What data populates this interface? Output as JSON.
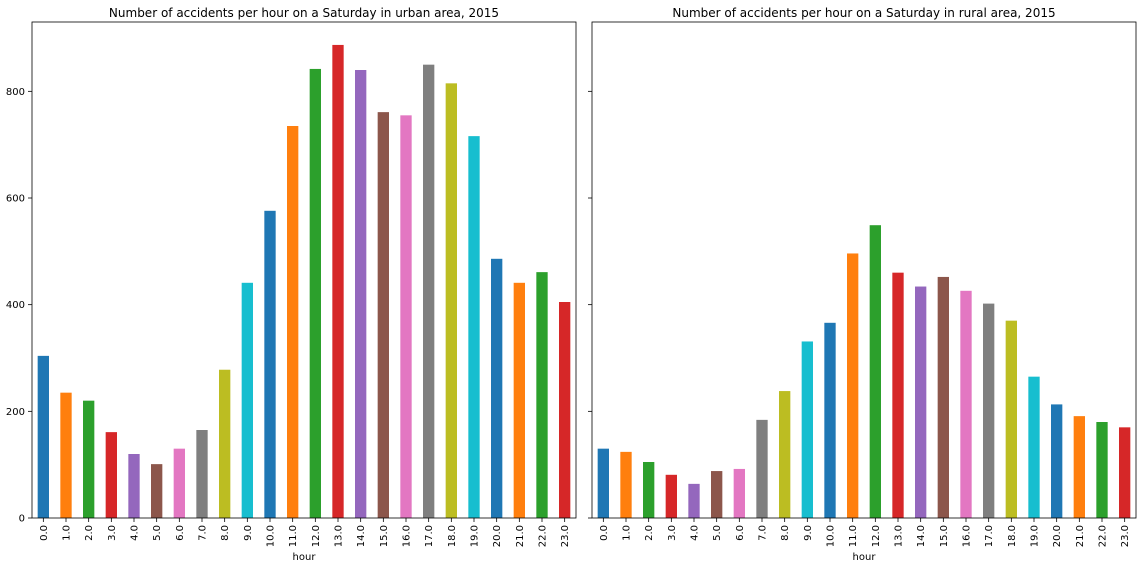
{
  "colors": [
    "#1f77b4",
    "#ff7f0e",
    "#2ca02c",
    "#d62728",
    "#9467bd",
    "#8c564b",
    "#e377c2",
    "#7f7f7f",
    "#bcbd22",
    "#17becf"
  ],
  "chart_data": [
    {
      "type": "bar",
      "title": "Number of accidents per hour on a Saturday in urban area, 2015",
      "xlabel": "hour",
      "ylabel": "",
      "ylim": [
        0,
        930
      ],
      "yticks": [
        0,
        200,
        400,
        600,
        800
      ],
      "categories": [
        "0.0",
        "1.0",
        "2.0",
        "3.0",
        "4.0",
        "5.0",
        "6.0",
        "7.0",
        "8.0",
        "9.0",
        "10.0",
        "11.0",
        "12.0",
        "13.0",
        "14.0",
        "15.0",
        "16.0",
        "17.0",
        "18.0",
        "19.0",
        "20.0",
        "21.0",
        "22.0",
        "23.0"
      ],
      "values": [
        304,
        235,
        220,
        161,
        120,
        101,
        130,
        165,
        278,
        441,
        576,
        735,
        842,
        887,
        840,
        761,
        755,
        850,
        815,
        716,
        486,
        441,
        461,
        405
      ]
    },
    {
      "type": "bar",
      "title": "Number of accidents per hour on a Saturday in rural area, 2015",
      "xlabel": "hour",
      "ylabel": "",
      "ylim": [
        0,
        930
      ],
      "yticks": [
        0,
        200,
        400,
        600,
        800
      ],
      "categories": [
        "0.0",
        "1.0",
        "2.0",
        "3.0",
        "4.0",
        "5.0",
        "6.0",
        "7.0",
        "8.0",
        "9.0",
        "10.0",
        "11.0",
        "12.0",
        "13.0",
        "14.0",
        "15.0",
        "16.0",
        "17.0",
        "18.0",
        "19.0",
        "20.0",
        "21.0",
        "22.0",
        "23.0"
      ],
      "values": [
        130,
        124,
        105,
        81,
        64,
        88,
        92,
        184,
        238,
        331,
        366,
        496,
        549,
        460,
        434,
        452,
        426,
        402,
        370,
        265,
        213,
        191,
        180,
        170
      ]
    }
  ]
}
